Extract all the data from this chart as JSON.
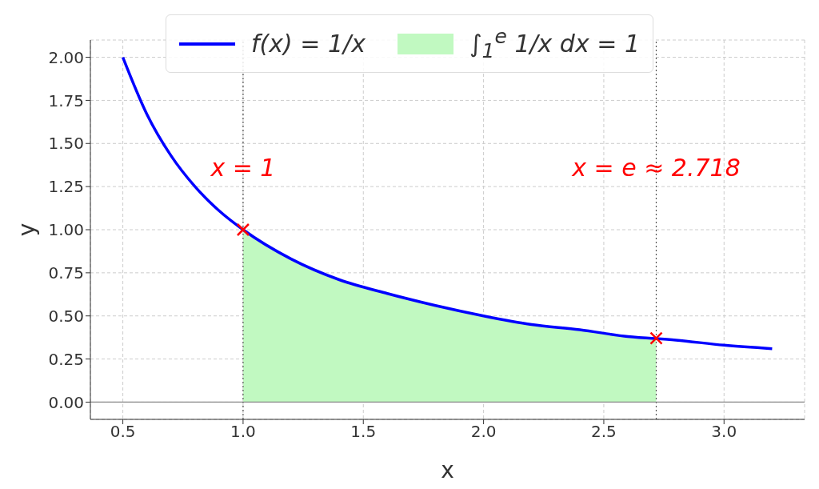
{
  "chart_data": {
    "type": "line",
    "xlabel": "x",
    "ylabel": "y",
    "series": [
      {
        "name": "f(x) = 1/x",
        "color": "#0000ff",
        "x": [
          0.5,
          0.6,
          0.7,
          0.8,
          0.9,
          1.0,
          1.2,
          1.4,
          1.6,
          1.8,
          2.0,
          2.2,
          2.4,
          2.6,
          2.8,
          3.0,
          3.2
        ],
        "values": [
          2.0,
          1.67,
          1.43,
          1.25,
          1.11,
          1.0,
          0.83,
          0.71,
          0.63,
          0.56,
          0.5,
          0.45,
          0.42,
          0.38,
          0.36,
          0.33,
          0.31
        ]
      },
      {
        "type": "area",
        "name": "∫$_{1}$$^{e}$ 1/x dx = 1",
        "color": "#c1f9c1",
        "x": [
          1.0,
          1.2,
          1.4,
          1.6,
          1.8,
          2.0,
          2.2,
          2.4,
          2.6,
          2.718
        ],
        "values": [
          1.0,
          0.83,
          0.71,
          0.63,
          0.56,
          0.5,
          0.45,
          0.42,
          0.38,
          0.37
        ]
      },
      {
        "type": "scatter",
        "color": "#ff0000",
        "marker": "cross",
        "x": [
          1.0,
          2.718
        ],
        "values": [
          1.0,
          0.37
        ]
      }
    ],
    "xlim": [
      0.365,
      3.335
    ],
    "ylim": [
      -0.1,
      2.1
    ],
    "xticks": [
      {
        "value": 0.5,
        "label": "0.5"
      },
      {
        "value": 1,
        "label": "1.0"
      },
      {
        "value": 1.5,
        "label": "1.5"
      },
      {
        "value": 2,
        "label": "2.0"
      },
      {
        "value": 2.5,
        "label": "2.5"
      },
      {
        "value": 3,
        "label": "3.0"
      }
    ],
    "yticks": [
      {
        "value": 0,
        "label": "0.00"
      },
      {
        "value": 0.25,
        "label": "0.25"
      },
      {
        "value": 0.5,
        "label": "0.50"
      },
      {
        "value": 0.75,
        "label": "0.75"
      },
      {
        "value": 1,
        "label": "1.00"
      },
      {
        "value": 1.25,
        "label": "1.25"
      },
      {
        "value": 1.5,
        "label": "1.50"
      },
      {
        "value": 1.75,
        "label": "1.75"
      },
      {
        "value": 2,
        "label": "2.00"
      }
    ],
    "ref_lines": [
      {
        "axis": "x",
        "value": 1,
        "color": "#555555",
        "line_style": "dotted"
      },
      {
        "axis": "x",
        "value": 2.718,
        "color": "#555555",
        "line_style": "dotted"
      },
      {
        "axis": "y",
        "value": 0,
        "color": "#888888",
        "line_style": "solid"
      }
    ],
    "annotations": [
      {
        "text": "x = 1",
        "x": 1,
        "y": 1.36
      },
      {
        "text": "x = e ≈ 2.718",
        "x": 2.718,
        "y": 1.36
      }
    ],
    "grid": true,
    "legend": "top"
  }
}
